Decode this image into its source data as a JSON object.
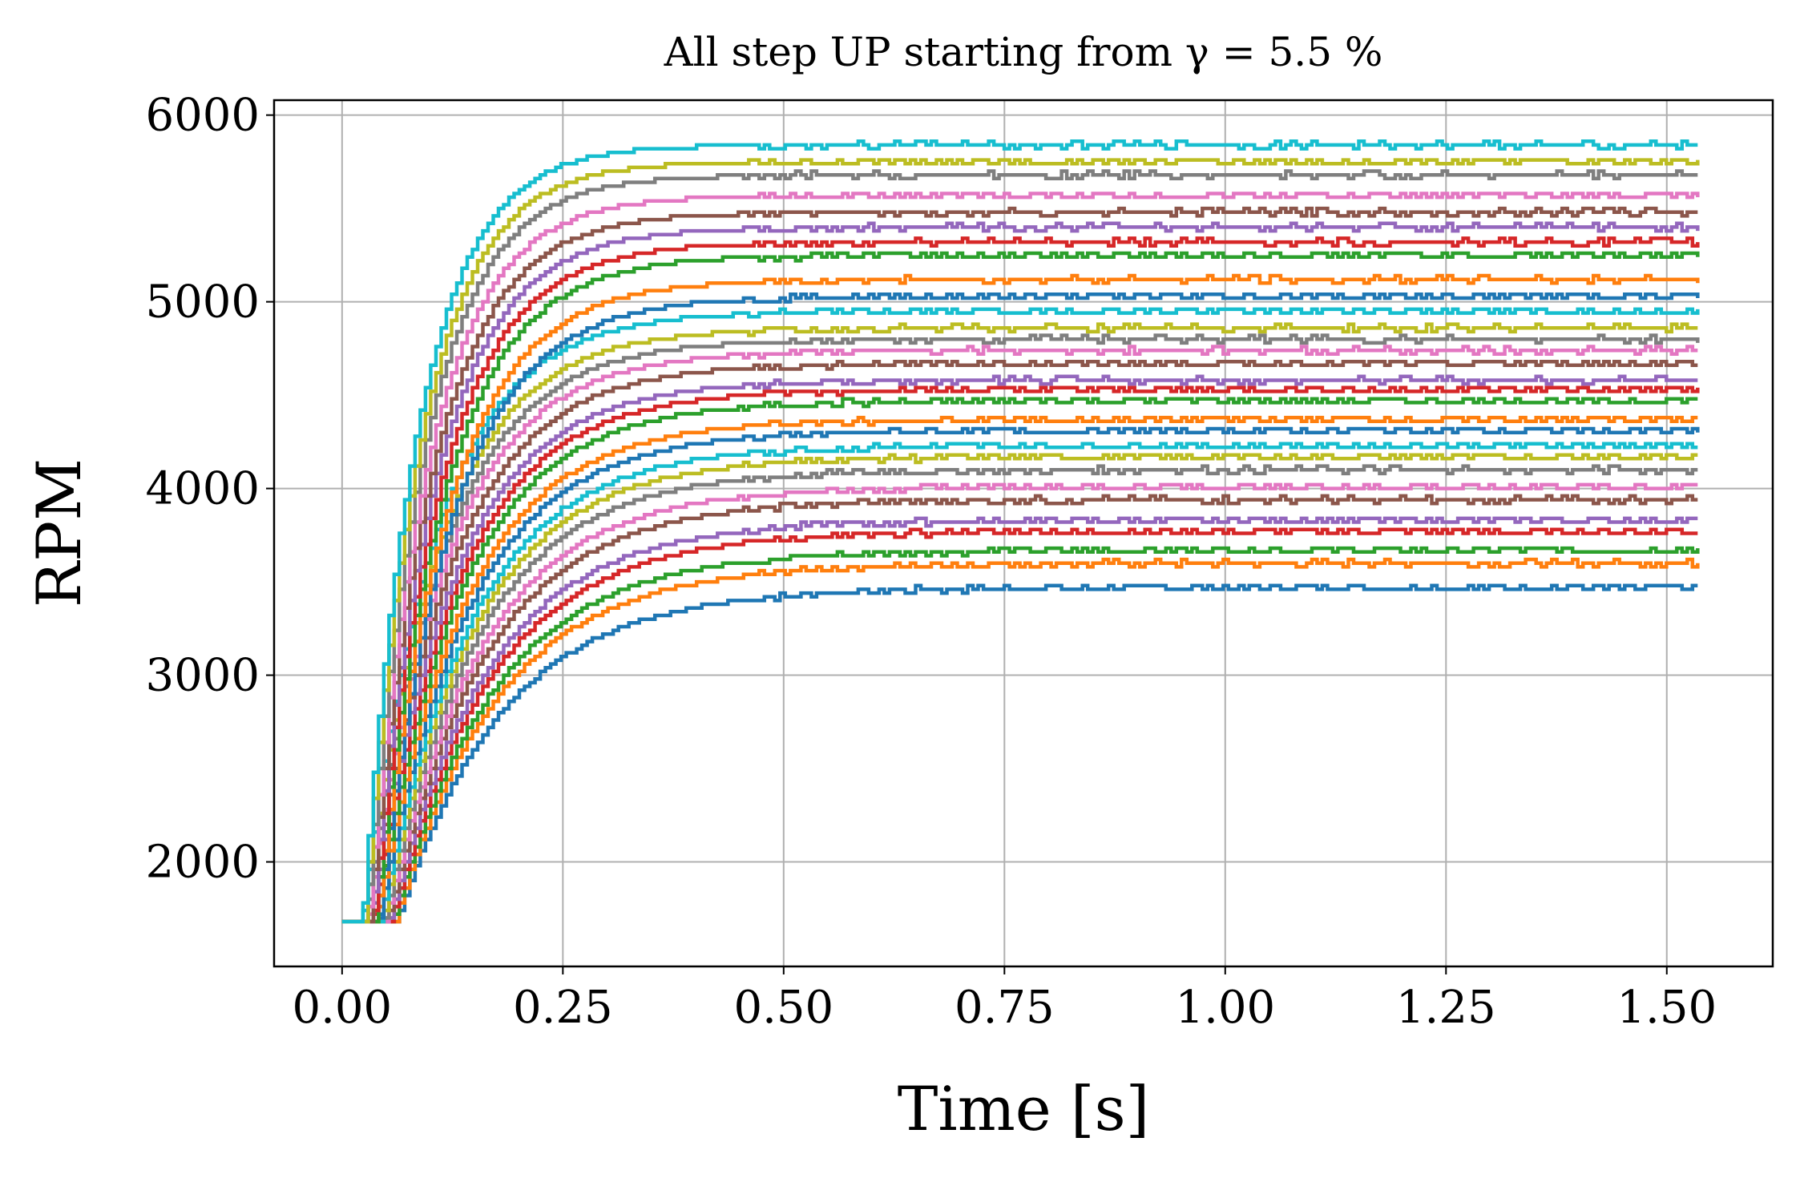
{
  "chart_data": {
    "type": "line",
    "title": "All step UP starting from γ = 5.5 %",
    "xlabel": "Time [s]",
    "ylabel": "RPM",
    "xlim": [
      -0.077,
      1.62
    ],
    "ylim": [
      1440,
      6080
    ],
    "x_ticks": [
      0.0,
      0.25,
      0.5,
      0.75,
      1.0,
      1.25,
      1.5
    ],
    "x_tick_labels": [
      "0.00",
      "0.25",
      "0.50",
      "0.75",
      "1.00",
      "1.25",
      "1.50"
    ],
    "y_ticks": [
      2000,
      3000,
      4000,
      5000,
      6000
    ],
    "y_tick_labels": [
      "2000",
      "3000",
      "4000",
      "5000",
      "6000"
    ],
    "grid": true,
    "legend": "none",
    "x_range": [
      0.0,
      1.535
    ],
    "start_value": 1670,
    "palette": [
      "#1f77b4",
      "#ff7f0e",
      "#2ca02c",
      "#d62728",
      "#9467bd",
      "#8c564b",
      "#e377c2",
      "#7f7f7f",
      "#bcbd22",
      "#17becf"
    ],
    "series": [
      {
        "final": 3470,
        "start_time": 0.06,
        "time_constant": 0.12
      },
      {
        "final": 3600,
        "start_time": 0.058,
        "time_constant": 0.118
      },
      {
        "final": 3670,
        "start_time": 0.056,
        "time_constant": 0.116
      },
      {
        "final": 3770,
        "start_time": 0.054,
        "time_constant": 0.114
      },
      {
        "final": 3830,
        "start_time": 0.052,
        "time_constant": 0.112
      },
      {
        "final": 3940,
        "start_time": 0.05,
        "time_constant": 0.11
      },
      {
        "final": 4010,
        "start_time": 0.048,
        "time_constant": 0.108
      },
      {
        "final": 4100,
        "start_time": 0.046,
        "time_constant": 0.106
      },
      {
        "final": 4170,
        "start_time": 0.044,
        "time_constant": 0.104
      },
      {
        "final": 4230,
        "start_time": 0.042,
        "time_constant": 0.102
      },
      {
        "final": 4310,
        "start_time": 0.04,
        "time_constant": 0.1
      },
      {
        "final": 4370,
        "start_time": 0.038,
        "time_constant": 0.098
      },
      {
        "final": 4470,
        "start_time": 0.036,
        "time_constant": 0.096
      },
      {
        "final": 4530,
        "start_time": 0.034,
        "time_constant": 0.094
      },
      {
        "final": 4580,
        "start_time": 0.032,
        "time_constant": 0.092
      },
      {
        "final": 4670,
        "start_time": 0.03,
        "time_constant": 0.09
      },
      {
        "final": 4740,
        "start_time": 0.028,
        "time_constant": 0.088
      },
      {
        "final": 4800,
        "start_time": 0.026,
        "time_constant": 0.086
      },
      {
        "final": 4860,
        "start_time": 0.024,
        "time_constant": 0.084
      },
      {
        "final": 4950,
        "start_time": 0.022,
        "time_constant": 0.082
      },
      {
        "final": 5030,
        "start_time": 0.04,
        "time_constant": 0.08
      },
      {
        "final": 5120,
        "start_time": 0.038,
        "time_constant": 0.078
      },
      {
        "final": 5250,
        "start_time": 0.036,
        "time_constant": 0.076
      },
      {
        "final": 5320,
        "start_time": 0.034,
        "time_constant": 0.074
      },
      {
        "final": 5400,
        "start_time": 0.032,
        "time_constant": 0.072
      },
      {
        "final": 5480,
        "start_time": 0.03,
        "time_constant": 0.07
      },
      {
        "final": 5570,
        "start_time": 0.028,
        "time_constant": 0.068
      },
      {
        "final": 5680,
        "start_time": 0.026,
        "time_constant": 0.066
      },
      {
        "final": 5750,
        "start_time": 0.024,
        "time_constant": 0.064
      },
      {
        "final": 5840,
        "start_time": 0.022,
        "time_constant": 0.062
      }
    ]
  }
}
